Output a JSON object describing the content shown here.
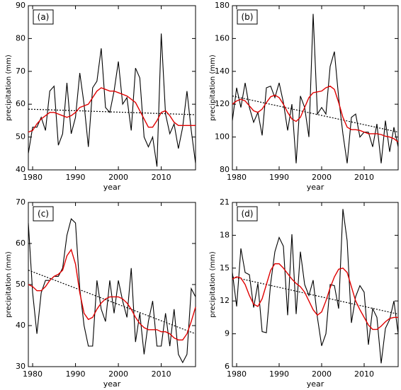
{
  "chart_data": [
    {
      "type": "line",
      "label": "(a)",
      "xlabel": "year",
      "ylabel": "precipitation  (mm)",
      "x": [
        1979,
        1980,
        1981,
        1982,
        1983,
        1984,
        1985,
        1986,
        1987,
        1988,
        1989,
        1990,
        1991,
        1992,
        1993,
        1994,
        1995,
        1996,
        1997,
        1998,
        1999,
        2000,
        2001,
        2002,
        2003,
        2004,
        2005,
        2006,
        2007,
        2008,
        2009,
        2010,
        2011,
        2012,
        2013,
        2014,
        2015,
        2016,
        2017,
        2018
      ],
      "series": [
        {
          "color": "#000000",
          "values": [
            45,
            53,
            53,
            56,
            52,
            64,
            65.5,
            47.5,
            51,
            66.5,
            51,
            56,
            69.5,
            60,
            47,
            65,
            67,
            77,
            59,
            57.5,
            64,
            73,
            60,
            62,
            52,
            71,
            68,
            50,
            47,
            50,
            41,
            81.5,
            57,
            51,
            54,
            46.5,
            53,
            64,
            52,
            42
          ]
        },
        {
          "color": "#e00000",
          "values": [
            51.5,
            52,
            54,
            55.5,
            56.5,
            57.5,
            57.5,
            57,
            56.5,
            56,
            56.5,
            57.5,
            59,
            59.5,
            60,
            62,
            64,
            65,
            64.5,
            64,
            64,
            63.5,
            63,
            62.5,
            61.5,
            60.5,
            58,
            55.5,
            53,
            53,
            55,
            57.5,
            58,
            56.5,
            54.5,
            53.5,
            53.5,
            53.5,
            53.5,
            53.5
          ]
        }
      ],
      "trend": {
        "color": "#000000",
        "x": [
          1979,
          2018
        ],
        "values": [
          58.5,
          56.8
        ]
      },
      "xlim": [
        1979,
        2018
      ],
      "xticks": [
        1980,
        1990,
        2000,
        2010
      ],
      "ylim": [
        40,
        90
      ],
      "yticks": [
        40,
        50,
        60,
        70,
        80,
        90
      ]
    },
    {
      "type": "line",
      "label": "(b)",
      "xlabel": "year",
      "ylabel": "precipitation  (mm)",
      "x": [
        1979,
        1980,
        1981,
        1982,
        1983,
        1984,
        1985,
        1986,
        1987,
        1988,
        1989,
        1990,
        1991,
        1992,
        1993,
        1994,
        1995,
        1996,
        1997,
        1998,
        1999,
        2000,
        2001,
        2002,
        2003,
        2004,
        2005,
        2006,
        2007,
        2008,
        2009,
        2010,
        2011,
        2012,
        2013,
        2014,
        2015,
        2016,
        2017,
        2018
      ],
      "series": [
        {
          "color": "#000000",
          "values": [
            110,
            130,
            118,
            133,
            118,
            109,
            115,
            101,
            130,
            131,
            124,
            133,
            121,
            104,
            120,
            84,
            125,
            118,
            100,
            175,
            114,
            118,
            114,
            143,
            152,
            124,
            102,
            84,
            112,
            114,
            100,
            103,
            103,
            94,
            108,
            84,
            110,
            91,
            106,
            94
          ]
        },
        {
          "color": "#e00000",
          "values": [
            120,
            122,
            123,
            122,
            119,
            116,
            115,
            117,
            121,
            124.5,
            125.5,
            124,
            120,
            115,
            111,
            109.5,
            112,
            118,
            124,
            127,
            127.5,
            128,
            130,
            131,
            129,
            121,
            112,
            106,
            104.5,
            104.5,
            104,
            103,
            102,
            102,
            102,
            101.5,
            100.5,
            100,
            99,
            97
          ]
        }
      ],
      "trend": {
        "color": "#000000",
        "x": [
          1979,
          2018
        ],
        "values": [
          125,
          103
        ]
      },
      "xlim": [
        1979,
        2018
      ],
      "xticks": [
        1980,
        1990,
        2000,
        2010
      ],
      "ylim": [
        80,
        180
      ],
      "yticks": [
        80,
        100,
        120,
        140,
        160,
        180
      ]
    },
    {
      "type": "line",
      "label": "(c)",
      "xlabel": "year",
      "ylabel": "precipitation  (mm)",
      "x": [
        1979,
        1980,
        1981,
        1982,
        1983,
        1984,
        1985,
        1986,
        1987,
        1988,
        1989,
        1990,
        1991,
        1992,
        1993,
        1994,
        1995,
        1996,
        1997,
        1998,
        1999,
        2000,
        2001,
        2002,
        2003,
        2004,
        2005,
        2006,
        2007,
        2008,
        2009,
        2010,
        2011,
        2012,
        2013,
        2014,
        2015,
        2016,
        2017,
        2018
      ],
      "series": [
        {
          "color": "#000000",
          "values": [
            65,
            48,
            38,
            48,
            51,
            51,
            52,
            52,
            54,
            62,
            66,
            65,
            49,
            40,
            35,
            35,
            51,
            44,
            41,
            51,
            43,
            51,
            46,
            42,
            54,
            36,
            43,
            33,
            41,
            46,
            35,
            35,
            43,
            35,
            44,
            33,
            31,
            33,
            49,
            47
          ]
        },
        {
          "color": "#e00000",
          "values": [
            50,
            49.5,
            48.5,
            48.5,
            49.5,
            51,
            52,
            52.5,
            53.5,
            57,
            58.5,
            55,
            48,
            43,
            41.5,
            42,
            44,
            45.5,
            46.5,
            47,
            47,
            47,
            46.5,
            45.5,
            44,
            42,
            40.5,
            39.5,
            39,
            39,
            39,
            38.5,
            38.5,
            38,
            37,
            36.5,
            36.5,
            38,
            41,
            44.5
          ]
        }
      ],
      "trend": {
        "color": "#000000",
        "x": [
          1979,
          2018
        ],
        "values": [
          53.5,
          38
        ]
      },
      "xlim": [
        1979,
        2018
      ],
      "xticks": [
        1980,
        1990,
        2000,
        2010
      ],
      "ylim": [
        30,
        70
      ],
      "yticks": [
        30,
        40,
        50,
        60,
        70
      ]
    },
    {
      "type": "line",
      "label": "(d)",
      "xlabel": "year",
      "ylabel": "precipitation  (mm)",
      "x": [
        1979,
        1980,
        1981,
        1982,
        1983,
        1984,
        1985,
        1986,
        1987,
        1988,
        1989,
        1990,
        1991,
        1992,
        1993,
        1994,
        1995,
        1996,
        1997,
        1998,
        1999,
        2000,
        2001,
        2002,
        2003,
        2004,
        2005,
        2006,
        2007,
        2008,
        2009,
        2010,
        2011,
        2012,
        2013,
        2014,
        2015,
        2016,
        2017,
        2018
      ],
      "series": [
        {
          "color": "#000000",
          "values": [
            14.6,
            11.5,
            16.8,
            14.6,
            14.4,
            11.4,
            13.6,
            9.2,
            9.1,
            13.6,
            16.5,
            17.8,
            17,
            10.7,
            18.1,
            10.8,
            16.5,
            13.5,
            12.5,
            13.9,
            10.5,
            7.9,
            9,
            13.5,
            13.4,
            11.3,
            20.4,
            17.5,
            10,
            12.4,
            13.4,
            12.8,
            8,
            11.3,
            10.5,
            6.3,
            9.5,
            10.3,
            12,
            9
          ]
        },
        {
          "color": "#e00000",
          "values": [
            14,
            14.2,
            14.1,
            13.5,
            12.5,
            11.7,
            11.5,
            12.2,
            13.5,
            14.8,
            15.4,
            15.4,
            15,
            14.5,
            14,
            13.6,
            13.3,
            12.8,
            12,
            11.2,
            10.7,
            11,
            12,
            13.2,
            14.2,
            14.9,
            15,
            14.6,
            13.3,
            12,
            11.2,
            10.5,
            9.8,
            9.4,
            9.4,
            9.7,
            10.1,
            10.4,
            10.5,
            10.5
          ]
        }
      ],
      "trend": {
        "color": "#000000",
        "x": [
          1979,
          2018
        ],
        "values": [
          14.2,
          10.8
        ]
      },
      "xlim": [
        1979,
        2018
      ],
      "xticks": [
        1980,
        1990,
        2000,
        2010
      ],
      "ylim": [
        6,
        21
      ],
      "yticks": [
        6,
        9,
        12,
        15,
        18,
        21
      ]
    }
  ]
}
